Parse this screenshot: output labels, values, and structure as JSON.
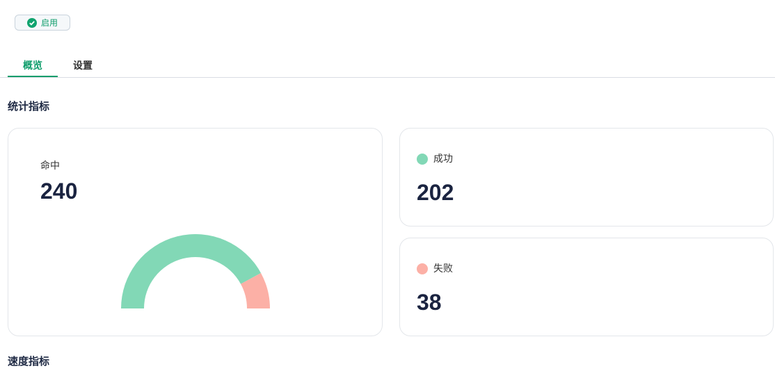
{
  "status": {
    "label": "启用"
  },
  "tabs": [
    "概览",
    "设置"
  ],
  "sections": [
    {
      "title": "统计指标"
    },
    {
      "title": "速度指标"
    }
  ],
  "hit": {
    "label": "命中",
    "value": 240
  },
  "stats": [
    {
      "label": "成功",
      "value": 202,
      "color": "#82d8b6"
    },
    {
      "label": "失败",
      "value": 38,
      "color": "#fcb0a6"
    }
  ]
}
